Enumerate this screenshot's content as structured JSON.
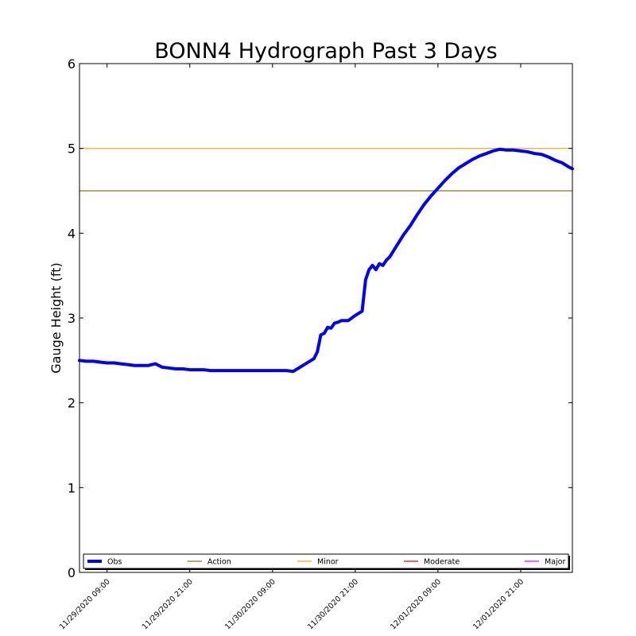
{
  "chart_data": {
    "type": "line",
    "title": "BONN4 Hydrograph Past 3 Days",
    "xlabel": "",
    "ylabel": "Gauge Height (ft)",
    "ylim": [
      0,
      6
    ],
    "yticks": [
      "0",
      "1",
      "2",
      "3",
      "4",
      "5",
      "6"
    ],
    "xlim": [
      "2020-11-29 05:00",
      "2020-12-02 04:30"
    ],
    "xticks": [
      {
        "t": "2020-11-29 09:00",
        "label": "11/29/2020 09:00"
      },
      {
        "t": "2020-11-29 21:00",
        "label": "11/29/2020 21:00"
      },
      {
        "t": "2020-11-30 09:00",
        "label": "11/30/2020 09:00"
      },
      {
        "t": "2020-11-30 21:00",
        "label": "11/30/2020 21:00"
      },
      {
        "t": "2020-12-01 09:00",
        "label": "12/01/2020 09:00"
      },
      {
        "t": "2020-12-01 21:00",
        "label": "12/01/2020 21:00"
      }
    ],
    "series": [
      {
        "name": "Obs",
        "color": "#0000ff",
        "points": [
          [
            "2020-11-29 05:00",
            2.5
          ],
          [
            "2020-11-29 06:00",
            2.49
          ],
          [
            "2020-11-29 07:00",
            2.49
          ],
          [
            "2020-11-29 08:00",
            2.48
          ],
          [
            "2020-11-29 09:00",
            2.47
          ],
          [
            "2020-11-29 10:00",
            2.47
          ],
          [
            "2020-11-29 11:00",
            2.46
          ],
          [
            "2020-11-29 12:00",
            2.45
          ],
          [
            "2020-11-29 13:00",
            2.44
          ],
          [
            "2020-11-29 14:00",
            2.44
          ],
          [
            "2020-11-29 15:00",
            2.44
          ],
          [
            "2020-11-29 16:00",
            2.46
          ],
          [
            "2020-11-29 17:00",
            2.42
          ],
          [
            "2020-11-29 18:00",
            2.41
          ],
          [
            "2020-11-29 19:00",
            2.4
          ],
          [
            "2020-11-29 20:00",
            2.4
          ],
          [
            "2020-11-29 21:00",
            2.39
          ],
          [
            "2020-11-29 22:00",
            2.39
          ],
          [
            "2020-11-29 23:00",
            2.39
          ],
          [
            "2020-11-30 00:00",
            2.38
          ],
          [
            "2020-11-30 01:00",
            2.38
          ],
          [
            "2020-11-30 02:00",
            2.38
          ],
          [
            "2020-11-30 03:00",
            2.38
          ],
          [
            "2020-11-30 04:00",
            2.38
          ],
          [
            "2020-11-30 05:00",
            2.38
          ],
          [
            "2020-11-30 06:00",
            2.38
          ],
          [
            "2020-11-30 07:00",
            2.38
          ],
          [
            "2020-11-30 08:00",
            2.38
          ],
          [
            "2020-11-30 09:00",
            2.38
          ],
          [
            "2020-11-30 10:00",
            2.38
          ],
          [
            "2020-11-30 11:00",
            2.38
          ],
          [
            "2020-11-30 12:00",
            2.37
          ],
          [
            "2020-11-30 13:00",
            2.42
          ],
          [
            "2020-11-30 14:00",
            2.47
          ],
          [
            "2020-11-30 15:00",
            2.52
          ],
          [
            "2020-11-30 15:30",
            2.6
          ],
          [
            "2020-11-30 16:00",
            2.8
          ],
          [
            "2020-11-30 16:30",
            2.82
          ],
          [
            "2020-11-30 17:00",
            2.89
          ],
          [
            "2020-11-30 17:30",
            2.88
          ],
          [
            "2020-11-30 18:00",
            2.94
          ],
          [
            "2020-11-30 18:30",
            2.95
          ],
          [
            "2020-11-30 19:00",
            2.97
          ],
          [
            "2020-11-30 20:00",
            2.97
          ],
          [
            "2020-11-30 21:00",
            3.03
          ],
          [
            "2020-11-30 22:00",
            3.08
          ],
          [
            "2020-11-30 22:30",
            3.45
          ],
          [
            "2020-11-30 23:00",
            3.57
          ],
          [
            "2020-11-30 23:30",
            3.62
          ],
          [
            "2020-12-01 00:00",
            3.57
          ],
          [
            "2020-12-01 00:30",
            3.64
          ],
          [
            "2020-12-01 01:00",
            3.62
          ],
          [
            "2020-12-01 01:30",
            3.68
          ],
          [
            "2020-12-01 02:00",
            3.72
          ],
          [
            "2020-12-01 03:00",
            3.85
          ],
          [
            "2020-12-01 04:00",
            3.98
          ],
          [
            "2020-12-01 05:00",
            4.09
          ],
          [
            "2020-12-01 06:00",
            4.22
          ],
          [
            "2020-12-01 07:00",
            4.34
          ],
          [
            "2020-12-01 08:00",
            4.44
          ],
          [
            "2020-12-01 09:00",
            4.53
          ],
          [
            "2020-12-01 10:00",
            4.62
          ],
          [
            "2020-12-01 11:00",
            4.7
          ],
          [
            "2020-12-01 12:00",
            4.77
          ],
          [
            "2020-12-01 13:00",
            4.82
          ],
          [
            "2020-12-01 14:00",
            4.87
          ],
          [
            "2020-12-01 15:00",
            4.91
          ],
          [
            "2020-12-01 16:00",
            4.94
          ],
          [
            "2020-12-01 17:00",
            4.97
          ],
          [
            "2020-12-01 18:00",
            4.99
          ],
          [
            "2020-12-01 19:00",
            4.98
          ],
          [
            "2020-12-01 20:00",
            4.98
          ],
          [
            "2020-12-01 21:00",
            4.97
          ],
          [
            "2020-12-01 22:00",
            4.96
          ],
          [
            "2020-12-01 23:00",
            4.94
          ],
          [
            "2020-12-02 00:00",
            4.93
          ],
          [
            "2020-12-02 01:00",
            4.9
          ],
          [
            "2020-12-02 02:00",
            4.86
          ],
          [
            "2020-12-02 03:00",
            4.83
          ],
          [
            "2020-12-02 04:00",
            4.78
          ],
          [
            "2020-12-02 04:30",
            4.76
          ]
        ]
      }
    ],
    "thresholds": [
      {
        "name": "Action",
        "value": 4.5,
        "color": "#808000"
      },
      {
        "name": "Minor",
        "value": 5.0,
        "color": "#ffa500"
      },
      {
        "name": "Moderate",
        "value": null,
        "color": "#ff0000"
      },
      {
        "name": "Major",
        "value": null,
        "color": "#ff00ff"
      }
    ],
    "legend": {
      "position": "bottom",
      "items": [
        {
          "label": "Obs",
          "color": "#0000ff",
          "heavy": true
        },
        {
          "label": "Action",
          "color": "#808000",
          "heavy": false
        },
        {
          "label": "Minor",
          "color": "#ffa500",
          "heavy": false
        },
        {
          "label": "Moderate",
          "color": "#ff0000",
          "heavy": false
        },
        {
          "label": "Major",
          "color": "#ff00ff",
          "heavy": false
        }
      ]
    },
    "grid": false
  }
}
